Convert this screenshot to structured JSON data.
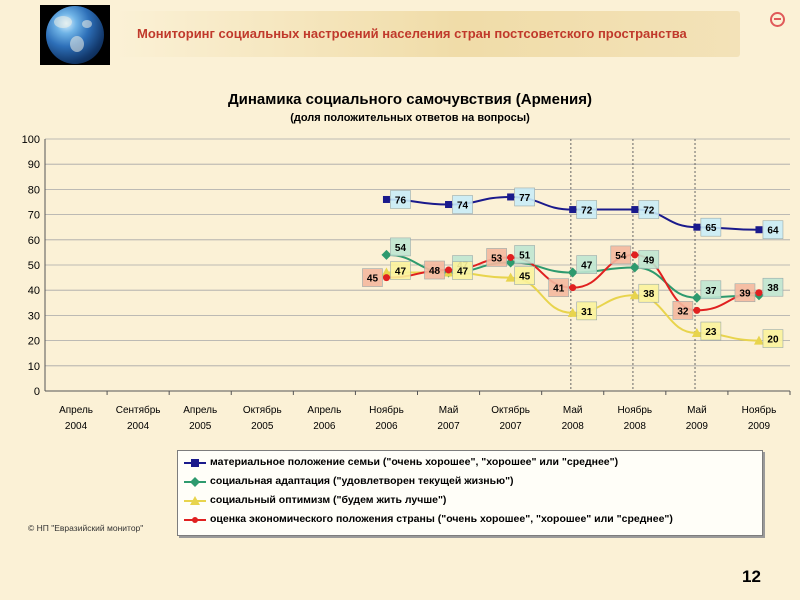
{
  "header": {
    "title": "Мониторинг социальных настроений населения стран постсоветского пространства"
  },
  "colors": {
    "background": "#fbf1d6",
    "title_text": "#c0392b",
    "series": [
      "#1a1a8c",
      "#2e9a6e",
      "#e8d44d",
      "#e02020"
    ]
  },
  "chart_data": {
    "type": "line",
    "title": "Динамика социального самочувствия (Армения)",
    "subtitle": "(доля положительных ответов на вопросы)",
    "categories": [
      "Апрель 2004",
      "Сентябрь 2004",
      "Апрель 2005",
      "Октябрь 2005",
      "Апрель 2006",
      "Ноябрь 2006",
      "Май 2007",
      "Октябрь 2007",
      "Май 2008",
      "Ноябрь 2008",
      "Май 2009",
      "Ноябрь 2009"
    ],
    "ylim": [
      0,
      100
    ],
    "yticks": [
      0,
      10,
      20,
      30,
      40,
      50,
      60,
      70,
      80,
      90,
      100
    ],
    "grid": true,
    "series": [
      {
        "name": "материальное положение семьи (\"очень хорошее\", \"хорошее\" или \"среднее\")",
        "color": "#1a1a8c",
        "marker": "square",
        "values": [
          null,
          null,
          null,
          null,
          null,
          76,
          74,
          77,
          72,
          72,
          65,
          64
        ]
      },
      {
        "name": "социальная адаптация (\"удовлетворен текущей жизнью\")",
        "color": "#2e9a6e",
        "marker": "diamond",
        "values": [
          null,
          null,
          null,
          null,
          null,
          54,
          47,
          51,
          47,
          49,
          37,
          38
        ]
      },
      {
        "name": "социальный оптимизм (\"будем жить лучше\")",
        "color": "#e8d44d",
        "marker": "triangle",
        "values": [
          null,
          null,
          null,
          null,
          null,
          47,
          47,
          45,
          31,
          38,
          23,
          20
        ]
      },
      {
        "name": "оценка экономического положения страны (\"очень хорошее\", \"хорошее\" или \"среднее\")",
        "color": "#e02020",
        "marker": "dot",
        "values": [
          null,
          null,
          null,
          null,
          null,
          45,
          48,
          53,
          41,
          54,
          32,
          39
        ]
      }
    ]
  },
  "copyright": "© НП \"Евразийский монитор\"",
  "page_number": "12"
}
